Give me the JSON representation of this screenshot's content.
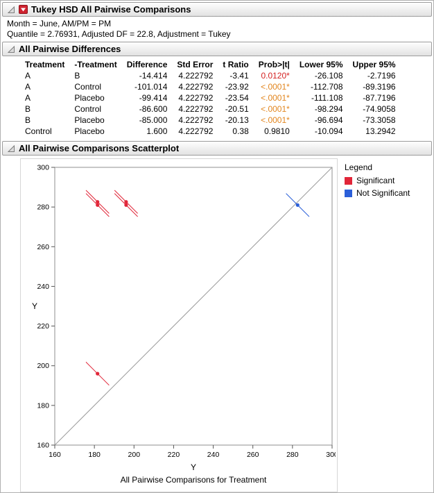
{
  "header": {
    "title": "Tukey HSD All Pairwise Comparisons"
  },
  "subtitle_lines": [
    "Month = June, AM/PM = PM",
    "Quantile = 2.76931, Adjusted DF = 22.8, Adjustment = Tukey"
  ],
  "differences": {
    "title": "All Pairwise Differences",
    "columns": [
      "Treatment",
      "-Treatment",
      "Difference",
      "Std Error",
      "t Ratio",
      "Prob>|t|",
      "Lower 95%",
      "Upper 95%"
    ],
    "rows": [
      {
        "t1": "A",
        "t2": "B",
        "diff": "-14.414",
        "se": "4.222792",
        "t": "-3.41",
        "p": "0.0120*",
        "p_color": "#d42222",
        "lo": "-26.108",
        "hi": "-2.7196"
      },
      {
        "t1": "A",
        "t2": "Control",
        "diff": "-101.014",
        "se": "4.222792",
        "t": "-23.92",
        "p": "<.0001*",
        "p_color": "#e2861f",
        "lo": "-112.708",
        "hi": "-89.3196"
      },
      {
        "t1": "A",
        "t2": "Placebo",
        "diff": "-99.414",
        "se": "4.222792",
        "t": "-23.54",
        "p": "<.0001*",
        "p_color": "#e2861f",
        "lo": "-111.108",
        "hi": "-87.7196"
      },
      {
        "t1": "B",
        "t2": "Control",
        "diff": "-86.600",
        "se": "4.222792",
        "t": "-20.51",
        "p": "<.0001*",
        "p_color": "#e2861f",
        "lo": "-98.294",
        "hi": "-74.9058"
      },
      {
        "t1": "B",
        "t2": "Placebo",
        "diff": "-85.000",
        "se": "4.222792",
        "t": "-20.13",
        "p": "<.0001*",
        "p_color": "#e2861f",
        "lo": "-96.694",
        "hi": "-73.3058"
      },
      {
        "t1": "Control",
        "t2": "Placebo",
        "diff": "1.600",
        "se": "4.222792",
        "t": "0.38",
        "p": "0.9810",
        "p_color": "#000000",
        "lo": "-10.094",
        "hi": "13.2942"
      }
    ]
  },
  "scatter": {
    "title": "All Pairwise Comparisons Scatterplot",
    "legend": {
      "title": "Legend",
      "items": [
        {
          "label": "Significant",
          "color": "#e12639"
        },
        {
          "label": "Not Significant",
          "color": "#2b5fd9"
        }
      ]
    }
  },
  "chart_data": {
    "type": "scatter",
    "title": "All Pairwise Comparisons Scatterplot",
    "xlabel": "Y",
    "ylabel": "Y",
    "caption": "All Pairwise Comparisons for Treatment",
    "xlim": [
      160,
      300
    ],
    "ylim": [
      160,
      300
    ],
    "ticks": [
      160,
      180,
      200,
      220,
      240,
      260,
      280,
      300
    ],
    "identity_line": true,
    "grid": false,
    "ci_halfwidth": 11.694,
    "points": [
      {
        "x": 181.6,
        "y": 282.6,
        "significant": true
      },
      {
        "x": 181.6,
        "y": 281.0,
        "significant": true
      },
      {
        "x": 196.0,
        "y": 282.6,
        "significant": true
      },
      {
        "x": 196.0,
        "y": 281.0,
        "significant": true
      },
      {
        "x": 181.6,
        "y": 196.0,
        "significant": true
      },
      {
        "x": 282.6,
        "y": 281.0,
        "significant": false
      }
    ]
  }
}
